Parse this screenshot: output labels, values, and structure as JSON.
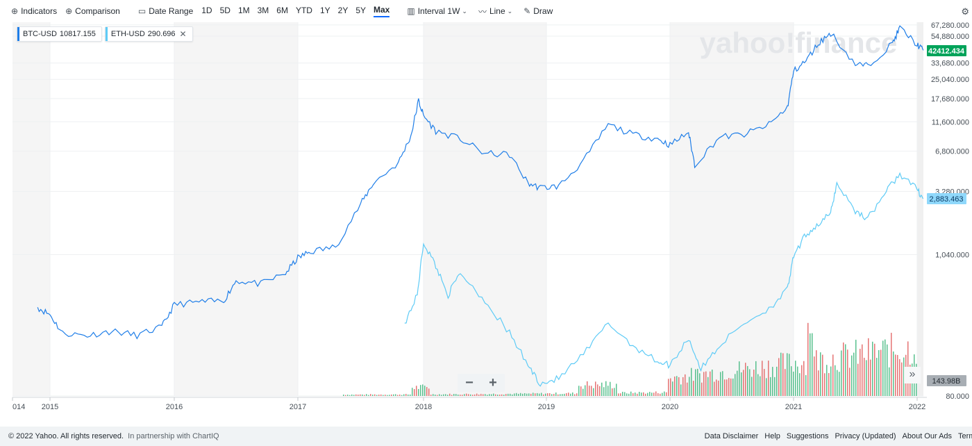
{
  "toolbar": {
    "indicators": "Indicators",
    "comparison": "Comparison",
    "date_range": "Date Range",
    "ranges": [
      "1D",
      "5D",
      "1M",
      "3M",
      "6M",
      "YTD",
      "1Y",
      "2Y",
      "5Y",
      "Max"
    ],
    "active_range": "Max",
    "interval_label": "Interval",
    "interval_value": "1W",
    "chart_type": "Line",
    "draw": "Draw"
  },
  "legend": {
    "btc": {
      "symbol": "BTC-USD",
      "value": "10817.155",
      "color": "#1f7ee8"
    },
    "eth": {
      "symbol": "ETH-USD",
      "value": "290.696",
      "color": "#5ecbf6"
    }
  },
  "watermark": "yahoo!finance",
  "zoom": {
    "minus": "−",
    "plus": "+"
  },
  "expand_icon": "»",
  "chart_data": {
    "type": "line",
    "scale": "log",
    "y_ticks": [
      "67,280.000",
      "54,880.000",
      "33,680.000",
      "25,040.000",
      "17,680.000",
      "11,600.000",
      "6,800.000",
      "3,280.000",
      "1,040.000",
      "80.000"
    ],
    "x_ticks": [
      "014",
      "2015",
      "2016",
      "2017",
      "2018",
      "2019",
      "2020",
      "2021",
      "2022"
    ],
    "current_labels": [
      {
        "text": "42412.434",
        "color": "#00a35a"
      },
      {
        "text": "2,883.463",
        "color": "#8fd8fb"
      },
      {
        "text": "143.98B",
        "color": "#a8aeb4"
      }
    ],
    "series": [
      {
        "name": "BTC-USD",
        "color": "#1f7ee8",
        "x": [
          2014.9,
          2015.0,
          2015.1,
          2015.3,
          2015.5,
          2015.7,
          2015.9,
          2016.0,
          2016.2,
          2016.4,
          2016.5,
          2016.7,
          2016.9,
          2017.0,
          2017.1,
          2017.3,
          2017.5,
          2017.6,
          2017.8,
          2017.9,
          2017.96,
          2018.0,
          2018.1,
          2018.3,
          2018.5,
          2018.7,
          2018.85,
          2018.95,
          2019.1,
          2019.3,
          2019.5,
          2019.7,
          2019.9,
          2020.0,
          2020.15,
          2020.2,
          2020.4,
          2020.6,
          2020.8,
          2020.95,
          2021.0,
          2021.1,
          2021.2,
          2021.3,
          2021.5,
          2021.6,
          2021.8,
          2021.86,
          2022.0,
          2022.05
        ],
        "y": [
          400,
          350,
          250,
          240,
          260,
          240,
          280,
          420,
          440,
          450,
          650,
          610,
          740,
          980,
          1100,
          1200,
          2600,
          3800,
          5500,
          9000,
          17000,
          13000,
          9800,
          8500,
          6500,
          6400,
          3800,
          3500,
          3600,
          5700,
          11000,
          9200,
          8500,
          7600,
          9600,
          5300,
          8800,
          9200,
          11000,
          15000,
          29000,
          35000,
          48000,
          58000,
          33000,
          32000,
          48000,
          64000,
          47000,
          42412
        ]
      },
      {
        "name": "ETH-USD",
        "color": "#5ecbf6",
        "x": [
          2017.85,
          2017.95,
          2018.0,
          2018.1,
          2018.2,
          2018.3,
          2018.5,
          2018.7,
          2018.85,
          2018.95,
          2019.1,
          2019.3,
          2019.5,
          2019.7,
          2019.9,
          2020.0,
          2020.15,
          2020.25,
          2020.4,
          2020.6,
          2020.8,
          2020.95,
          2021.0,
          2021.1,
          2021.2,
          2021.3,
          2021.35,
          2021.5,
          2021.6,
          2021.75,
          2021.86,
          2022.0,
          2022.05
        ],
        "y": [
          300,
          500,
          1300,
          850,
          500,
          750,
          450,
          250,
          140,
          100,
          110,
          170,
          300,
          200,
          150,
          140,
          230,
          130,
          200,
          300,
          390,
          550,
          1000,
          1500,
          1800,
          2200,
          3800,
          2300,
          2000,
          3300,
          4500,
          3400,
          2883
        ]
      }
    ],
    "volume": {
      "note": "weekly trading volume bars (green up / red down)",
      "last_value": "143.98B"
    }
  },
  "footer": {
    "copyright": "© 2022 Yahoo. All rights reserved.",
    "partner": "In partnership with ChartIQ",
    "links": [
      "Data Disclaimer",
      "Help",
      "Suggestions",
      "Privacy (Updated)",
      "About Our Ads",
      "Terms"
    ]
  }
}
